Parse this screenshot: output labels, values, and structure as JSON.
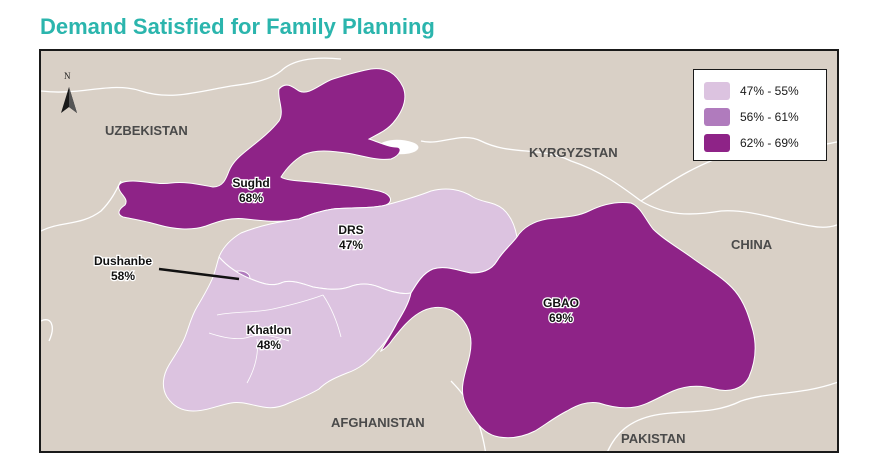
{
  "title": "Demand Satisfied for Family Planning",
  "north_label": "N",
  "countries": {
    "uzbekistan": "UZBEKISTAN",
    "kyrgyzstan": "KYRGYZSTAN",
    "china": "CHINA",
    "afghanistan": "AFGHANISTAN",
    "pakistan": "PAKISTAN"
  },
  "regions": {
    "sughd": {
      "name": "Sughd",
      "value": "68%"
    },
    "drs": {
      "name": "DRS",
      "value": "47%"
    },
    "dushanbe": {
      "name": "Dushanbe",
      "value": "58%"
    },
    "khatlon": {
      "name": "Khatlon",
      "value": "48%"
    },
    "gbao": {
      "name": "GBAO",
      "value": "69%"
    }
  },
  "legend": [
    {
      "label": "47% - 55%",
      "color": "#dcc3e0"
    },
    {
      "label": "56% - 61%",
      "color": "#b07bbd"
    },
    {
      "label": "62% - 69%",
      "color": "#8e2387"
    }
  ],
  "colors": {
    "title": "#2bb5ad",
    "land": "#d9d0c6",
    "high": "#8e2387",
    "low": "#dcc3e0",
    "border": "#ffffff"
  }
}
